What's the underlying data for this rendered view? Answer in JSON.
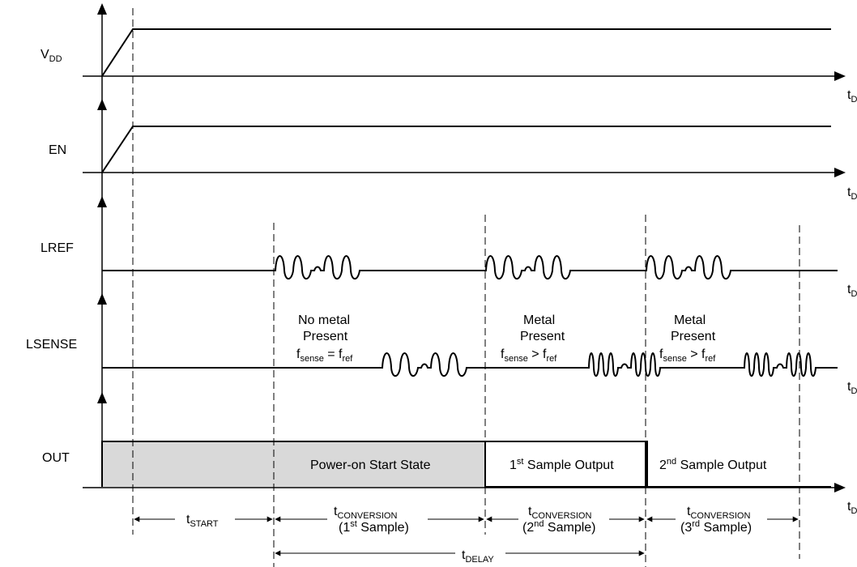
{
  "signals": {
    "vdd": {
      "label": "V",
      "sub": "DD"
    },
    "en": {
      "label": "EN"
    },
    "lref": {
      "label": "LREF"
    },
    "lsense": {
      "label": "LSENSE"
    },
    "out": {
      "label": "OUT"
    }
  },
  "axis_label": {
    "t": "t",
    "sub": "D"
  },
  "phases": {
    "no_metal": {
      "line1": "No metal",
      "line2": "Present",
      "f": "f",
      "f_sub": "sense",
      "op": " = f",
      "f2_sub": "ref"
    },
    "metal_1": {
      "line1": "Metal",
      "line2": "Present",
      "f": "f",
      "f_sub": "sense",
      "op": " > f",
      "f2_sub": "ref"
    },
    "metal_2": {
      "line1": "Metal",
      "line2": "Present",
      "f": "f",
      "f_sub": "sense",
      "op": " > f",
      "f2_sub": "ref"
    }
  },
  "out_states": {
    "power_on": "Power-on Start State",
    "sample1": {
      "n": "1",
      "sup": "st",
      "text": " Sample Output"
    },
    "sample2": {
      "n": "2",
      "sup": "nd",
      "text": " Sample Output"
    }
  },
  "timing": {
    "t_start": {
      "t": "t",
      "sub": "START"
    },
    "conv1": {
      "t": "t",
      "sub": "CONVERSION",
      "pre": "(1",
      "sup": "st",
      "post": " Sample)"
    },
    "conv2": {
      "t": "t",
      "sub": "CONVERSION",
      "pre": "(2",
      "sup": "nd",
      "post": " Sample)"
    },
    "conv3": {
      "t": "t",
      "sub": "CONVERSION",
      "pre": "(3",
      "sup": "rd",
      "post": " Sample)"
    },
    "t_delay": {
      "t": "t",
      "sub": "DELAY"
    }
  },
  "colors": {
    "out_fill": "#d9d9d9",
    "line": "#000000"
  }
}
